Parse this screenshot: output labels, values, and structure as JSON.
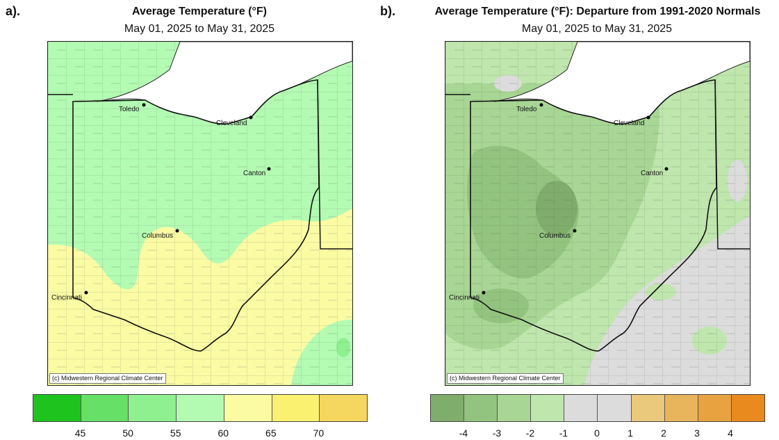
{
  "panels": [
    {
      "letter": "a).",
      "title": "Average Temperature (°F)",
      "subtitle": "May 01, 2025 to May 31, 2025",
      "credit": "(c) Midwestern Regional Climate Center",
      "legend": {
        "colors": [
          "#1ec31e",
          "#66e066",
          "#8ff08f",
          "#b3fbb3",
          "#fbfba4",
          "#fbf170",
          "#f5d65e"
        ],
        "ticks": [
          "45",
          "50",
          "55",
          "60",
          "65",
          "70"
        ]
      }
    },
    {
      "letter": "b).",
      "title": "Average Temperature (°F): Departure from 1991-2020 Normals",
      "subtitle": "May 01, 2025 to May 31, 2025",
      "credit": "(c) Midwestern Regional Climate Center",
      "legend": {
        "colors": [
          "#7fad6b",
          "#93c47f",
          "#a8d694",
          "#bfe6ad",
          "#dcdcdc",
          "#dcdcdc",
          "#ebc97c",
          "#e8b45c",
          "#e8a23f",
          "#e88a1e"
        ],
        "ticks": [
          "-4",
          "-3",
          "-2",
          "-1",
          "0",
          "1",
          "2",
          "3",
          "4"
        ]
      }
    }
  ],
  "cities": {
    "toledo": "Toledo",
    "cleveland": "Cleveland",
    "canton": "Canton",
    "columbus": "Columbus",
    "cincinnati": "Cincinnati"
  },
  "colors": {
    "lake": "#ffffff",
    "borders": "#222222"
  }
}
